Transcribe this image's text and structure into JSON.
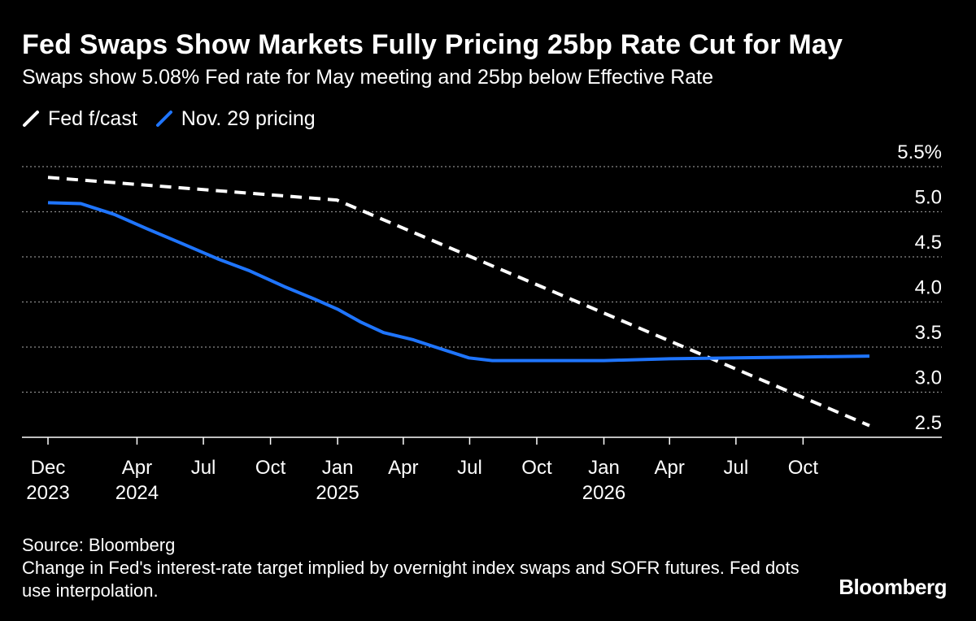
{
  "title": "Fed Swaps Show Markets Fully Pricing 25bp Rate Cut for May",
  "subtitle": "Swaps show 5.08% Fed rate for May meeting and 25bp below Effective Rate",
  "legend": [
    {
      "label": "Fed f/cast",
      "color": "#ffffff",
      "style": "dashed"
    },
    {
      "label": "Nov. 29 pricing",
      "color": "#1f75ff",
      "style": "solid"
    }
  ],
  "source": "Source: Bloomberg",
  "note": "Change in Fed's interest-rate target implied by overnight index swaps and SOFR futures. Fed dots use interpolation.",
  "brand": "Bloomberg",
  "chart_data": {
    "type": "line",
    "x_axis": {
      "start": "2023-12-01",
      "end": "2026-12-31",
      "ticks": [
        {
          "date": "2023-12-01",
          "line1": "Dec",
          "line2": "2023"
        },
        {
          "date": "2024-04-01",
          "line1": "Apr",
          "line2": "2024"
        },
        {
          "date": "2024-07-01",
          "line1": "Jul",
          "line2": ""
        },
        {
          "date": "2024-10-01",
          "line1": "Oct",
          "line2": ""
        },
        {
          "date": "2025-01-01",
          "line1": "Jan",
          "line2": "2025"
        },
        {
          "date": "2025-04-01",
          "line1": "Apr",
          "line2": ""
        },
        {
          "date": "2025-07-01",
          "line1": "Jul",
          "line2": ""
        },
        {
          "date": "2025-10-01",
          "line1": "Oct",
          "line2": ""
        },
        {
          "date": "2026-01-01",
          "line1": "Jan",
          "line2": "2026"
        },
        {
          "date": "2026-04-01",
          "line1": "Apr",
          "line2": ""
        },
        {
          "date": "2026-07-01",
          "line1": "Jul",
          "line2": ""
        },
        {
          "date": "2026-10-01",
          "line1": "Oct",
          "line2": ""
        }
      ]
    },
    "y_axis": {
      "min": 2.5,
      "max": 5.5,
      "ticks": [
        {
          "value": 5.5,
          "label": "5.5%"
        },
        {
          "value": 5.0,
          "label": "5.0"
        },
        {
          "value": 4.5,
          "label": "4.5"
        },
        {
          "value": 4.0,
          "label": "4.0"
        },
        {
          "value": 3.5,
          "label": "3.5"
        },
        {
          "value": 3.0,
          "label": "3.0"
        },
        {
          "value": 2.5,
          "label": "2.5"
        }
      ],
      "grid": true,
      "position": "right"
    },
    "series": [
      {
        "name": "Fed f/cast",
        "color": "#ffffff",
        "dashed": true,
        "points": [
          [
            "2023-12-01",
            5.38
          ],
          [
            "2024-12-31",
            5.13
          ],
          [
            "2025-12-31",
            3.88
          ],
          [
            "2026-12-31",
            2.63
          ]
        ]
      },
      {
        "name": "Nov. 29 pricing",
        "color": "#1f75ff",
        "dashed": false,
        "points": [
          [
            "2023-12-01",
            5.1
          ],
          [
            "2024-01-15",
            5.09
          ],
          [
            "2024-03-01",
            4.97
          ],
          [
            "2024-04-15",
            4.81
          ],
          [
            "2024-06-01",
            4.65
          ],
          [
            "2024-07-20",
            4.48
          ],
          [
            "2024-09-01",
            4.35
          ],
          [
            "2024-10-20",
            4.17
          ],
          [
            "2024-12-01",
            4.03
          ],
          [
            "2025-01-01",
            3.92
          ],
          [
            "2025-02-01",
            3.78
          ],
          [
            "2025-03-05",
            3.66
          ],
          [
            "2025-04-15",
            3.58
          ],
          [
            "2025-05-15",
            3.5
          ],
          [
            "2025-06-30",
            3.38
          ],
          [
            "2025-08-01",
            3.35
          ],
          [
            "2025-10-01",
            3.35
          ],
          [
            "2026-01-01",
            3.35
          ],
          [
            "2026-04-01",
            3.37
          ],
          [
            "2026-07-01",
            3.38
          ],
          [
            "2026-10-01",
            3.39
          ],
          [
            "2026-12-31",
            3.4
          ]
        ]
      }
    ]
  }
}
